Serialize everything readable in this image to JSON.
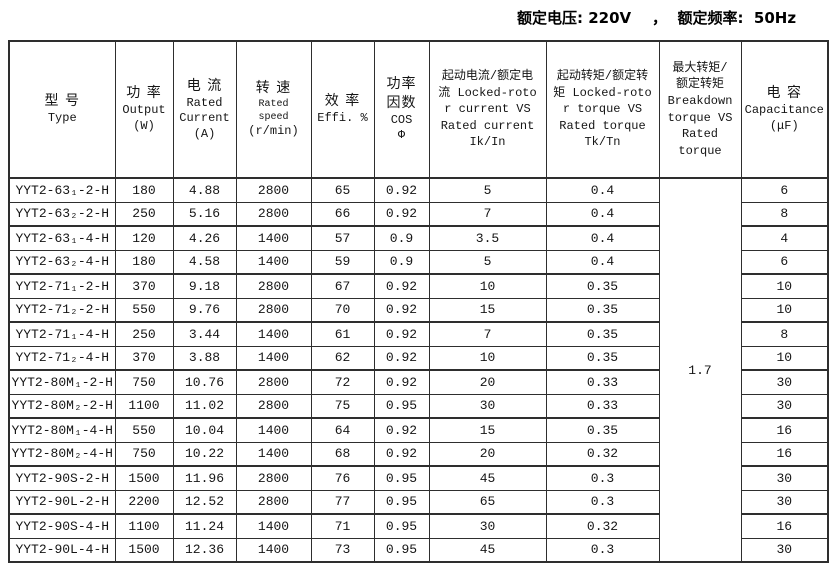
{
  "caption": {
    "text": "额定电压: 220V    ，  额定频率:  50Hz"
  },
  "table": {
    "breakdown_value": "1.7",
    "columns": [
      {
        "id": "type",
        "zh": "型 号",
        "en": "Type"
      },
      {
        "id": "output",
        "zh": "功 率",
        "en": "Output\n(W)"
      },
      {
        "id": "current",
        "zh": "电 流",
        "en": "Rated\nCurrent\n(A)"
      },
      {
        "id": "speed",
        "zh": "转 速",
        "en_small": "Rated\nspeed",
        "en": "(r/min)"
      },
      {
        "id": "efficiency",
        "zh": "效 率",
        "en": "Effi. %"
      },
      {
        "id": "cos",
        "zh": "功率\n因数",
        "en": "COS\nΦ"
      },
      {
        "id": "ik-in",
        "text": "起动电流/额定电\n流 Locked-roto\nr current VS\nRated current\nIk/In"
      },
      {
        "id": "tk-tn",
        "text": "起动转矩/额定转\n矩 Locked-roto\nr torque VS\nRated torque\nTk/Tn"
      },
      {
        "id": "breakdown",
        "text": "最大转矩/\n额定转矩\nBreakdown\ntorque VS\nRated\ntorque"
      },
      {
        "id": "capacitance",
        "zh": "电 容",
        "en": "Capacitance\n(μF)"
      }
    ],
    "rows": [
      {
        "model": "YYT2-63₁-2-H",
        "output": "180",
        "current": "4.88",
        "speed": "2800",
        "effi": "65",
        "cos": "0.92",
        "ik_in": "5",
        "tk_tn": "0.4",
        "cap": "6",
        "cap_large": false
      },
      {
        "model": "YYT2-63₂-2-H",
        "output": "250",
        "current": "5.16",
        "speed": "2800",
        "effi": "66",
        "cos": "0.92",
        "ik_in": "7",
        "tk_tn": "0.4",
        "cap": "8",
        "cap_large": false
      },
      {
        "model": "YYT2-63₁-4-H",
        "output": "120",
        "current": "4.26",
        "speed": "1400",
        "effi": "57",
        "cos": "0.9",
        "ik_in": "3.5",
        "tk_tn": "0.4",
        "cap": "4",
        "cap_large": false
      },
      {
        "model": "YYT2-63₂-4-H",
        "output": "180",
        "current": "4.58",
        "speed": "1400",
        "effi": "59",
        "cos": "0.9",
        "ik_in": "5",
        "tk_tn": "0.4",
        "cap": "6",
        "cap_large": false
      },
      {
        "model": "YYT2-71₁-2-H",
        "output": "370",
        "current": "9.18",
        "speed": "2800",
        "effi": "67",
        "cos": "0.92",
        "ik_in": "10",
        "tk_tn": "0.35",
        "cap": "10",
        "cap_large": false
      },
      {
        "model": "YYT2-71₂-2-H",
        "output": "550",
        "current": "9.76",
        "speed": "2800",
        "effi": "70",
        "cos": "0.92",
        "ik_in": "15",
        "tk_tn": "0.35",
        "cap": "10",
        "cap_large": false
      },
      {
        "model": "YYT2-71₁-4-H",
        "output": "250",
        "current": "3.44",
        "speed": "1400",
        "effi": "61",
        "cos": "0.92",
        "ik_in": "7",
        "tk_tn": "0.35",
        "cap": "8",
        "cap_large": false
      },
      {
        "model": "YYT2-71₂-4-H",
        "output": "370",
        "current": "3.88",
        "speed": "1400",
        "effi": "62",
        "cos": "0.92",
        "ik_in": "10",
        "tk_tn": "0.35",
        "cap": "10",
        "cap_large": false
      },
      {
        "model": "YYT2-80M₁-2-H",
        "output": "750",
        "current": "10.76",
        "speed": "2800",
        "effi": "72",
        "cos": "0.92",
        "ik_in": "20",
        "tk_tn": "0.33",
        "cap": "30",
        "cap_large": false
      },
      {
        "model": "YYT2-80M₂-2-H",
        "output": "1100",
        "current": "11.02",
        "speed": "2800",
        "effi": "75",
        "cos": "0.95",
        "ik_in": "30",
        "tk_tn": "0.33",
        "cap": "30",
        "cap_large": false
      },
      {
        "model": "YYT2-80M₁-4-H",
        "output": "550",
        "current": "10.04",
        "speed": "1400",
        "effi": "64",
        "cos": "0.92",
        "ik_in": "15",
        "tk_tn": "0.35",
        "cap": "16",
        "cap_large": false
      },
      {
        "model": "YYT2-80M₂-4-H",
        "output": "750",
        "current": "10.22",
        "speed": "1400",
        "effi": "68",
        "cos": "0.92",
        "ik_in": "20",
        "tk_tn": "0.32",
        "cap": "16",
        "cap_large": false
      },
      {
        "model": "YYT2-90S-2-H",
        "output": "1500",
        "current": "11.96",
        "speed": "2800",
        "effi": "76",
        "cos": "0.95",
        "ik_in": "45",
        "tk_tn": "0.3",
        "cap": "30",
        "cap_large": false
      },
      {
        "model": "YYT2-90L-2-H",
        "output": "2200",
        "current": "12.52",
        "speed": "2800",
        "effi": "77",
        "cos": "0.95",
        "ik_in": "65",
        "tk_tn": "0.3",
        "cap": "30",
        "cap_large": true
      },
      {
        "model": "YYT2-90S-4-H",
        "output": "1100",
        "current": "11.24",
        "speed": "1400",
        "effi": "71",
        "cos": "0.95",
        "ik_in": "30",
        "tk_tn": "0.32",
        "cap": "16",
        "cap_large": true
      },
      {
        "model": "YYT2-90L-4-H",
        "output": "1500",
        "current": "12.36",
        "speed": "1400",
        "effi": "73",
        "cos": "0.95",
        "ik_in": "45",
        "tk_tn": "0.3",
        "cap": "30",
        "cap_large": true
      }
    ]
  }
}
